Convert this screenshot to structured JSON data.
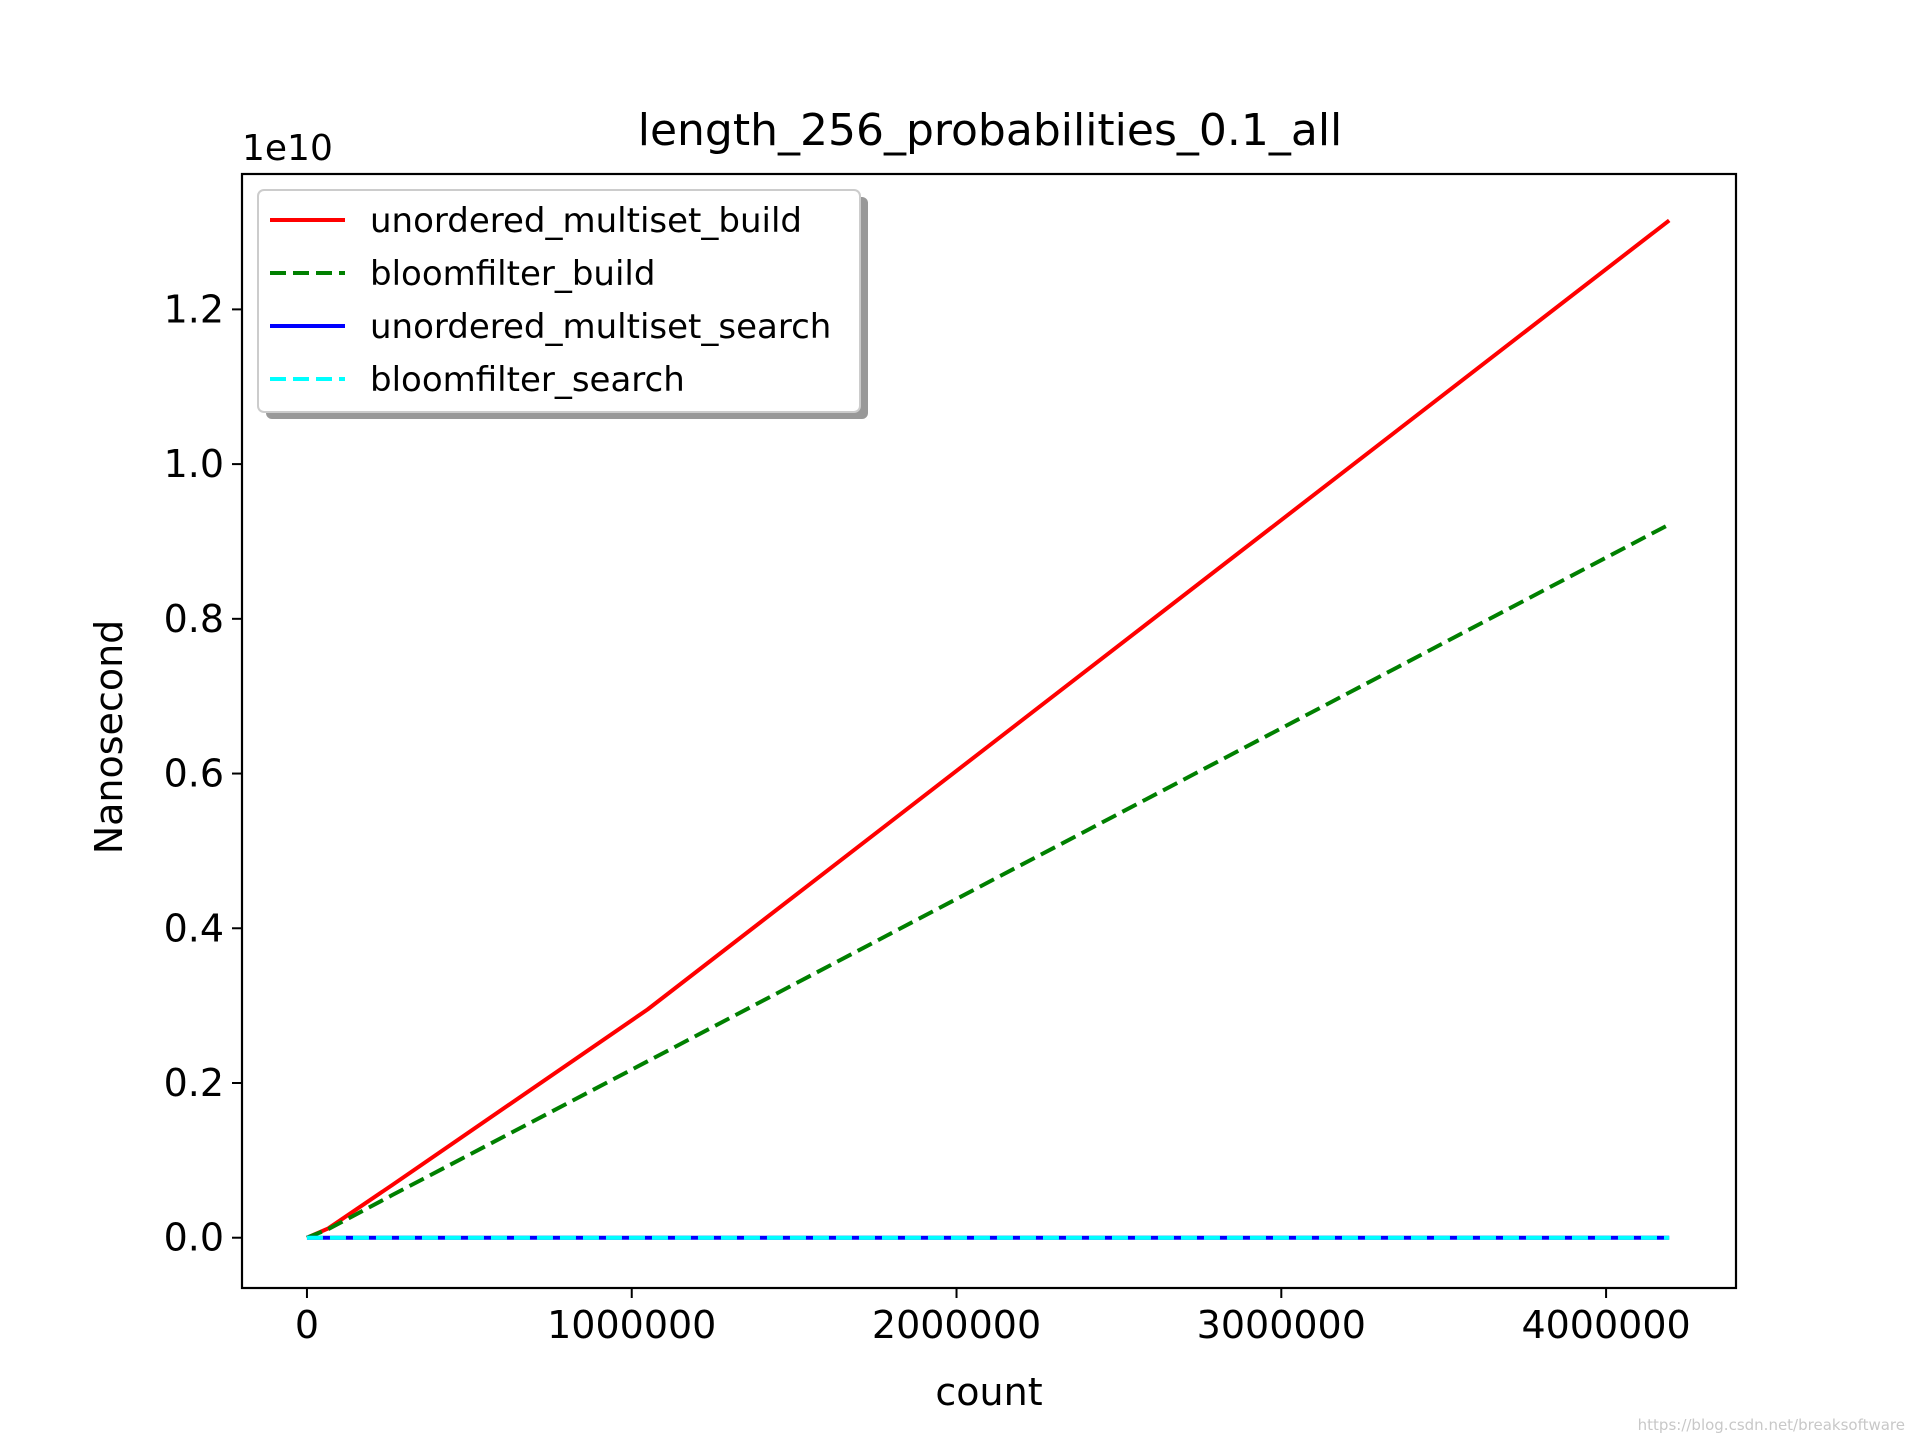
{
  "chart_data": {
    "type": "line",
    "title": "length_256_probabilities_0.1_all",
    "xlabel": "count",
    "ylabel": "Nanosecond",
    "y_offset_text": "1e10",
    "xlim": [
      -200000,
      4400000
    ],
    "ylim": [
      -0.065,
      1.375
    ],
    "y_scale_note": "values in units of 1e10",
    "xticks": [
      {
        "value": 0,
        "label": "0"
      },
      {
        "value": 1000000,
        "label": "1000000"
      },
      {
        "value": 2000000,
        "label": "2000000"
      },
      {
        "value": 3000000,
        "label": "3000000"
      },
      {
        "value": 4000000,
        "label": "4000000"
      }
    ],
    "yticks": [
      {
        "value": 0.0,
        "label": "0.0"
      },
      {
        "value": 0.2,
        "label": "0.2"
      },
      {
        "value": 0.4,
        "label": "0.4"
      },
      {
        "value": 0.6,
        "label": "0.6"
      },
      {
        "value": 0.8,
        "label": "0.8"
      },
      {
        "value": 1.0,
        "label": "1.0"
      },
      {
        "value": 1.2,
        "label": "1.2"
      }
    ],
    "grid": false,
    "legend_position": "top-left",
    "series": [
      {
        "name": "unordered_multiset_build",
        "color": "#ff0000",
        "dash": "solid",
        "x": [
          0,
          65536,
          262144,
          1048576,
          4194304
        ],
        "y": [
          0.0,
          0.012,
          0.068,
          0.295,
          1.315
        ]
      },
      {
        "name": "bloomfilter_build",
        "color": "#008000",
        "dash": "dashed",
        "x": [
          0,
          65536,
          262144,
          1048576,
          4194304
        ],
        "y": [
          0.0,
          0.011,
          0.055,
          0.228,
          0.922
        ]
      },
      {
        "name": "unordered_multiset_search",
        "color": "#0000ff",
        "dash": "solid",
        "x": [
          0,
          65536,
          262144,
          1048576,
          4194304
        ],
        "y": [
          0.0,
          0.0,
          0.0,
          0.0,
          0.0
        ]
      },
      {
        "name": "bloomfilter_search",
        "color": "#00ffff",
        "dash": "dashed",
        "x": [
          0,
          65536,
          262144,
          1048576,
          4194304
        ],
        "y": [
          0.0,
          0.0,
          0.0,
          0.0,
          0.0
        ]
      }
    ]
  },
  "watermark": "https://blog.csdn.net/breaksoftware"
}
